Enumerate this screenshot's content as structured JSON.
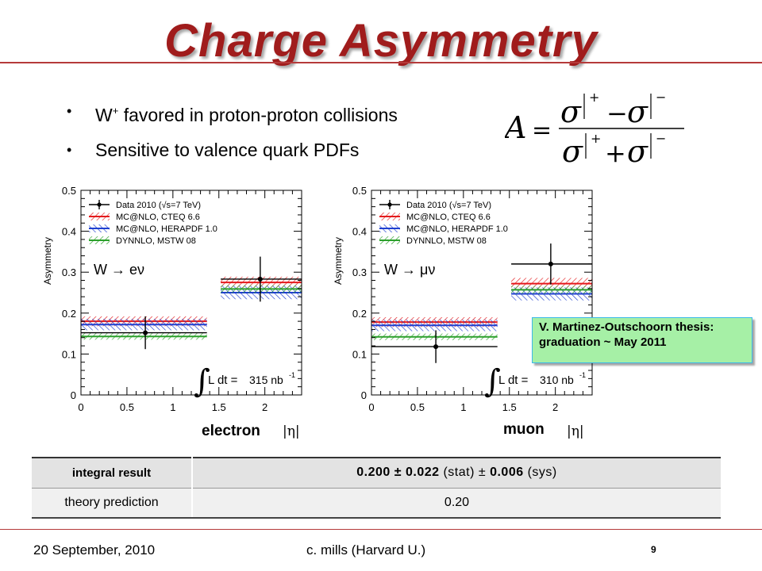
{
  "slide": {
    "title": "Charge Asymmetry",
    "bullets": [
      {
        "pre": "W",
        "sup": "+",
        "text": " favored in proton-proton collisions"
      },
      {
        "pre": "",
        "sup": "",
        "text": "Sensitive to valence quark PDFs"
      }
    ],
    "footer": {
      "date": "20 September, 2010",
      "author": "c. mills (Harvard U.)",
      "page": "9"
    },
    "note": "V. Martinez-Outschoorn thesis: graduation ~ May 2011",
    "channels": [
      {
        "label": "electron",
        "var": "|η|"
      },
      {
        "label": "muon",
        "var": "|η|"
      }
    ],
    "table": {
      "rows": [
        {
          "label": "integral result",
          "value_bold": "0.200 ± 0.022",
          "stat": " (stat) ± ",
          "sys_bold": "0.006",
          "sys": " (sys)"
        },
        {
          "label": "theory prediction",
          "value": "0.20"
        }
      ]
    },
    "colors": {
      "title": "#a01c1c",
      "rule": "#b53a3a",
      "note_bg": "#a6f0a6",
      "note_border": "#3cb8ea"
    }
  },
  "chart_data": [
    {
      "type": "scatter",
      "ylabel": "Asymmetry",
      "xlim": [
        0,
        2.4
      ],
      "ylim": [
        0,
        0.5
      ],
      "xticks": [
        "0",
        "0.5",
        "1",
        "1.5",
        "2"
      ],
      "yticks": [
        "0",
        "0.1",
        "0.2",
        "0.3",
        "0.4",
        "0.5"
      ],
      "channel_text": "W → eν",
      "lumi": {
        "integral": "∫",
        "ldt": "L dt =",
        "value": "315 nb",
        "exp": "-1"
      },
      "legend": [
        {
          "name": "Data 2010 (√s=7 TeV)",
          "color": "#000000",
          "style": "data"
        },
        {
          "name": "MC@NLO, CTEQ 6.6",
          "color": "#e41a1c",
          "style": "band"
        },
        {
          "name": "MC@NLO, HERAPDF 1.0",
          "color": "#1f3fd0",
          "style": "band"
        },
        {
          "name": "DYNNLO, MSTW 08",
          "color": "#2ca02c",
          "style": "band"
        }
      ],
      "data": [
        {
          "x": 0.7,
          "xlo": 0.0,
          "xhi": 1.37,
          "y": 0.152,
          "yerr": 0.04
        },
        {
          "x": 1.95,
          "xlo": 1.52,
          "xhi": 2.4,
          "y": 0.283,
          "yerr": 0.055
        }
      ],
      "theory": [
        {
          "name": "MC@NLO, CTEQ 6.6",
          "color": "#e41a1c",
          "bins": [
            {
              "xlo": 0.0,
              "xhi": 1.37,
              "y": 0.18,
              "unc": 0.012
            },
            {
              "xlo": 1.52,
              "xhi": 2.4,
              "y": 0.275,
              "unc": 0.014
            }
          ]
        },
        {
          "name": "MC@NLO, HERAPDF 1.0",
          "color": "#1f3fd0",
          "bins": [
            {
              "xlo": 0.0,
              "xhi": 1.37,
              "y": 0.172,
              "unc": 0.014
            },
            {
              "xlo": 1.52,
              "xhi": 2.4,
              "y": 0.25,
              "unc": 0.016
            }
          ]
        },
        {
          "name": "DYNNLO, MSTW 08",
          "color": "#2ca02c",
          "bins": [
            {
              "xlo": 0.0,
              "xhi": 1.37,
              "y": 0.143,
              "unc": 0.008
            },
            {
              "xlo": 1.52,
              "xhi": 2.4,
              "y": 0.259,
              "unc": 0.01
            }
          ]
        }
      ]
    },
    {
      "type": "scatter",
      "ylabel": "Asymmetry",
      "xlim": [
        0,
        2.4
      ],
      "ylim": [
        0,
        0.5
      ],
      "xticks": [
        "0",
        "0.5",
        "1",
        "1.5",
        "2"
      ],
      "yticks": [
        "0",
        "0.1",
        "0.2",
        "0.3",
        "0.4",
        "0.5"
      ],
      "channel_text": "W → μν",
      "lumi": {
        "integral": "∫",
        "ldt": "L dt =",
        "value": "310 nb",
        "exp": "-1"
      },
      "legend": [
        {
          "name": "Data 2010 (√s=7 TeV)",
          "color": "#000000",
          "style": "data"
        },
        {
          "name": "MC@NLO, CTEQ 6.6",
          "color": "#e41a1c",
          "style": "band"
        },
        {
          "name": "MC@NLO, HERAPDF 1.0",
          "color": "#1f3fd0",
          "style": "band"
        },
        {
          "name": "DYNNLO, MSTW 08",
          "color": "#2ca02c",
          "style": "band"
        }
      ],
      "data": [
        {
          "x": 0.7,
          "xlo": 0.0,
          "xhi": 1.37,
          "y": 0.118,
          "yerr": 0.04
        },
        {
          "x": 1.95,
          "xlo": 1.52,
          "xhi": 2.4,
          "y": 0.32,
          "yerr": 0.05
        }
      ],
      "theory": [
        {
          "name": "MC@NLO, CTEQ 6.6",
          "color": "#e41a1c",
          "bins": [
            {
              "xlo": 0.0,
              "xhi": 1.37,
              "y": 0.178,
              "unc": 0.012
            },
            {
              "xlo": 1.52,
              "xhi": 2.4,
              "y": 0.272,
              "unc": 0.014
            }
          ]
        },
        {
          "name": "MC@NLO, HERAPDF 1.0",
          "color": "#1f3fd0",
          "bins": [
            {
              "xlo": 0.0,
              "xhi": 1.37,
              "y": 0.17,
              "unc": 0.014
            },
            {
              "xlo": 1.52,
              "xhi": 2.4,
              "y": 0.247,
              "unc": 0.016
            }
          ]
        },
        {
          "name": "DYNNLO, MSTW 08",
          "color": "#2ca02c",
          "bins": [
            {
              "xlo": 0.0,
              "xhi": 1.37,
              "y": 0.142,
              "unc": 0.008
            },
            {
              "xlo": 1.52,
              "xhi": 2.4,
              "y": 0.257,
              "unc": 0.01
            }
          ]
        }
      ]
    }
  ]
}
